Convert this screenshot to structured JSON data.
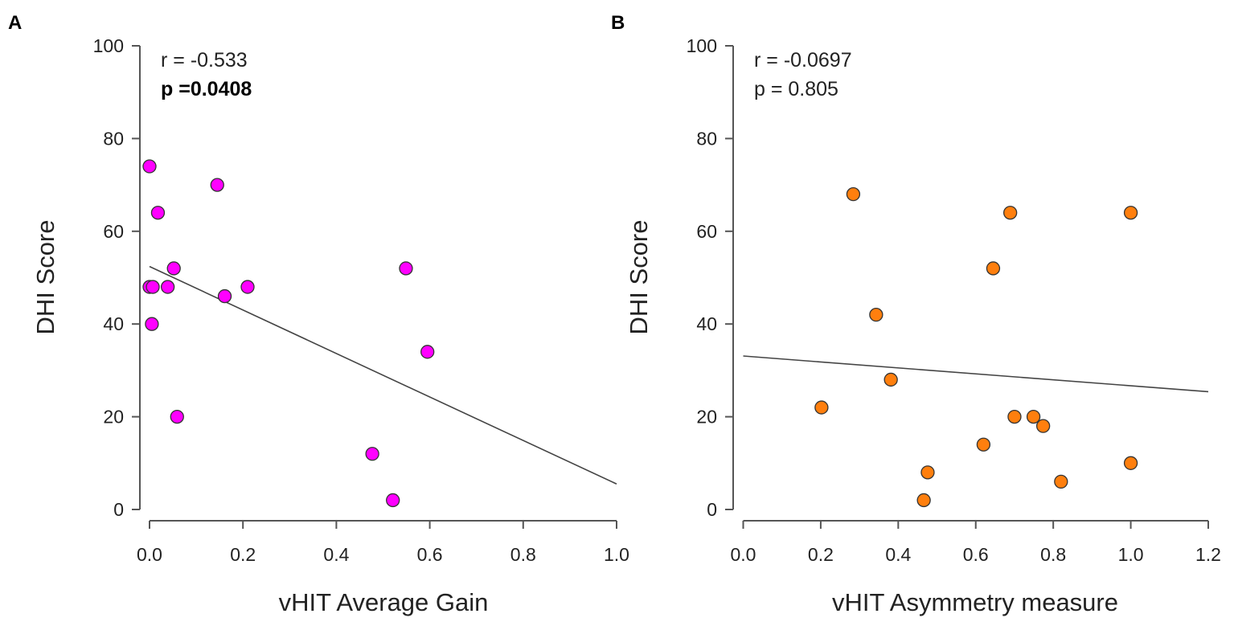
{
  "chart_data": [
    {
      "type": "scatter",
      "panel_label": "A",
      "xlabel": "vHIT Average Gain",
      "ylabel": "DHI Score",
      "xlim": [
        0,
        1.0
      ],
      "ylim": [
        0,
        100
      ],
      "xticks": [
        "0.0",
        "0.2",
        "0.4",
        "0.6",
        "0.8",
        "1.0"
      ],
      "yticks": [
        "0",
        "20",
        "40",
        "60",
        "80",
        "100"
      ],
      "grid": false,
      "point_color": "#ff00ff",
      "annotations": {
        "r": "r = -0.533",
        "p": "p =0.0408"
      },
      "points": [
        {
          "x": 0.0,
          "y": 74
        },
        {
          "x": 0.145,
          "y": 70
        },
        {
          "x": 0.018,
          "y": 64
        },
        {
          "x": 0.052,
          "y": 52
        },
        {
          "x": 0.0,
          "y": 48
        },
        {
          "x": 0.007,
          "y": 48
        },
        {
          "x": 0.039,
          "y": 48
        },
        {
          "x": 0.21,
          "y": 48
        },
        {
          "x": 0.161,
          "y": 46
        },
        {
          "x": 0.005,
          "y": 40
        },
        {
          "x": 0.059,
          "y": 20
        },
        {
          "x": 0.549,
          "y": 52
        },
        {
          "x": 0.595,
          "y": 34
        },
        {
          "x": 0.477,
          "y": 12
        },
        {
          "x": 0.521,
          "y": 2
        }
      ],
      "fit_line": {
        "x": [
          0.0,
          1.0
        ],
        "y": [
          52.4,
          5.5
        ]
      }
    },
    {
      "type": "scatter",
      "panel_label": "B",
      "xlabel": "vHIT Asymmetry measure",
      "ylabel": "DHI Score",
      "xlim": [
        0,
        1.2
      ],
      "ylim": [
        0,
        100
      ],
      "xticks": [
        "0.0",
        "0.2",
        "0.4",
        "0.6",
        "0.8",
        "1.0",
        "1.2"
      ],
      "yticks": [
        "0",
        "20",
        "40",
        "60",
        "80",
        "100"
      ],
      "grid": false,
      "point_color": "#ff7f0e",
      "annotations": {
        "r": "r = -0.0697",
        "p": "p = 0.805"
      },
      "points": [
        {
          "x": 0.284,
          "y": 68
        },
        {
          "x": 0.689,
          "y": 64
        },
        {
          "x": 1.0,
          "y": 64
        },
        {
          "x": 0.645,
          "y": 52
        },
        {
          "x": 0.343,
          "y": 42
        },
        {
          "x": 0.381,
          "y": 28
        },
        {
          "x": 0.202,
          "y": 22
        },
        {
          "x": 0.7,
          "y": 20
        },
        {
          "x": 0.749,
          "y": 20
        },
        {
          "x": 0.774,
          "y": 18
        },
        {
          "x": 0.62,
          "y": 14
        },
        {
          "x": 0.476,
          "y": 8
        },
        {
          "x": 0.466,
          "y": 2
        },
        {
          "x": 0.82,
          "y": 6
        },
        {
          "x": 1.0,
          "y": 10
        }
      ],
      "fit_line": {
        "x": [
          0.0,
          1.2
        ],
        "y": [
          33.1,
          25.4
        ]
      }
    }
  ]
}
